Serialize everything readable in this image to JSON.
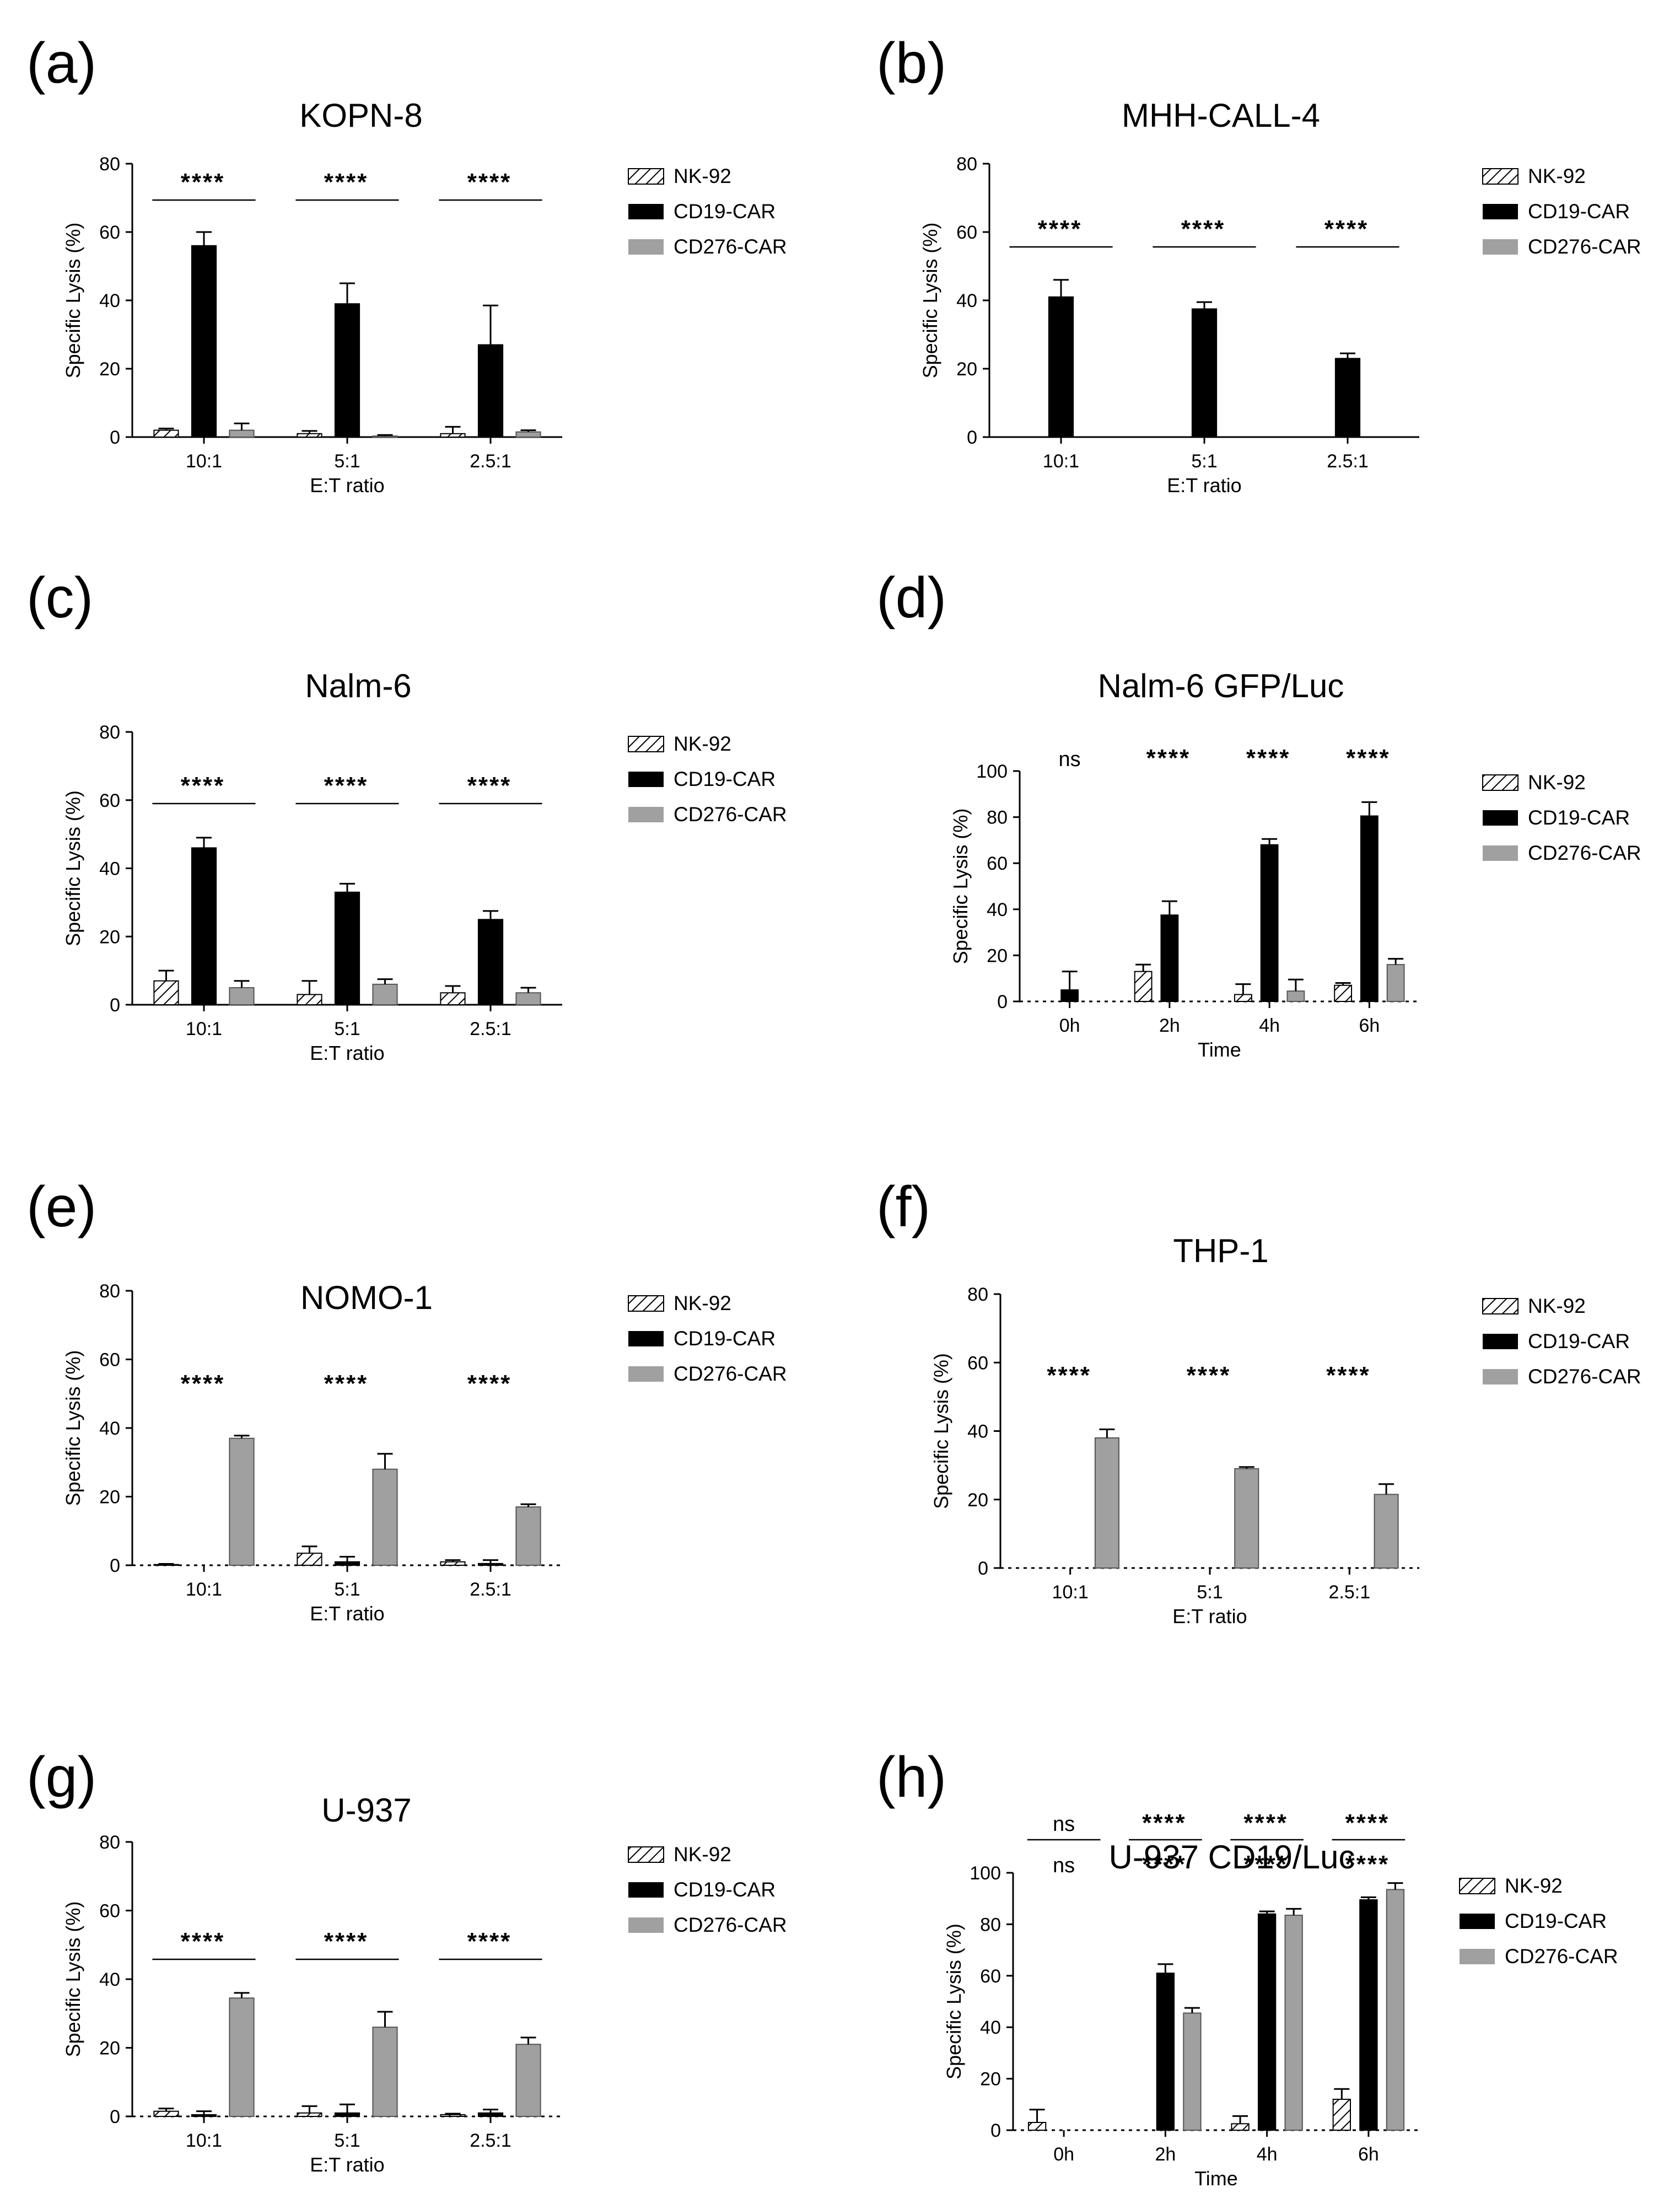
{
  "colors": {
    "nk92": "#ffffff",
    "cd19": "#000000",
    "cd276": "#a0a0a0",
    "axis": "#000000"
  },
  "legend": [
    "NK-92",
    "CD19-CAR",
    "CD276-CAR"
  ],
  "chart_data": [
    {
      "panel": "(a)",
      "type": "bar",
      "title": "KOPN-8",
      "ylabel": "Specific Lysis (%)",
      "xlabel": "E:T ratio",
      "categories": [
        "10:1",
        "5:1",
        "2.5:1"
      ],
      "ylim": [
        0,
        80
      ],
      "yticks": [
        0,
        20,
        40,
        60,
        80
      ],
      "ytick_style": "plain",
      "series": [
        {
          "name": "NK-92",
          "values": [
            2,
            1,
            1
          ],
          "errors": [
            0.5,
            0.8,
            2
          ]
        },
        {
          "name": "CD19-CAR",
          "values": [
            56,
            39,
            27
          ],
          "errors": [
            4,
            6,
            11.5
          ]
        },
        {
          "name": "CD276-CAR",
          "values": [
            2,
            0.3,
            1.5
          ],
          "errors": [
            2,
            0.3,
            0.5
          ]
        }
      ],
      "significance": [
        {
          "category": 0,
          "label": "****",
          "line": true
        },
        {
          "category": 1,
          "label": "****",
          "line": true
        },
        {
          "category": 2,
          "label": "****",
          "line": true
        }
      ]
    },
    {
      "panel": "(b)",
      "type": "bar",
      "title": "MHH-CALL-4",
      "ylabel": "Specific Lysis (%)",
      "xlabel": "E:T ratio",
      "categories": [
        "10:1",
        "5:1",
        "2.5:1"
      ],
      "ylim": [
        0,
        80
      ],
      "yticks": [
        0,
        20,
        40,
        60,
        80
      ],
      "ytick_style": "plain",
      "series": [
        {
          "name": "NK-92",
          "values": [
            0,
            0,
            0
          ],
          "errors": [
            0,
            0,
            0
          ]
        },
        {
          "name": "CD19-CAR",
          "values": [
            41,
            37.5,
            23
          ],
          "errors": [
            5,
            2,
            1.5
          ]
        },
        {
          "name": "CD276-CAR",
          "values": [
            0,
            0,
            0
          ],
          "errors": [
            0,
            0,
            0
          ]
        }
      ],
      "significance": [
        {
          "category": 0,
          "label": "****",
          "line": true
        },
        {
          "category": 1,
          "label": "****",
          "line": true
        },
        {
          "category": 2,
          "label": "****",
          "line": true
        }
      ]
    },
    {
      "panel": "(c)",
      "type": "bar",
      "title": "Nalm-6",
      "ylabel": "Specific Lysis (%)",
      "xlabel": "E:T ratio",
      "categories": [
        "10:1",
        "5:1",
        "2.5:1"
      ],
      "ylim": [
        0,
        80
      ],
      "yticks": [
        0,
        20,
        40,
        60,
        80
      ],
      "ytick_style": "dash",
      "series": [
        {
          "name": "NK-92",
          "values": [
            7,
            3,
            3.5
          ],
          "errors": [
            3,
            4,
            2
          ]
        },
        {
          "name": "CD19-CAR",
          "values": [
            46,
            33,
            25
          ],
          "errors": [
            3,
            2.5,
            2.5
          ]
        },
        {
          "name": "CD276-CAR",
          "values": [
            5,
            6,
            3.5
          ],
          "errors": [
            2,
            1.5,
            1.5
          ]
        }
      ],
      "significance": [
        {
          "category": 0,
          "label": "****",
          "line": true
        },
        {
          "category": 1,
          "label": "****",
          "line": true
        },
        {
          "category": 2,
          "label": "****",
          "line": true
        }
      ]
    },
    {
      "panel": "(d)",
      "type": "bar",
      "title": "Nalm-6 GFP/Luc",
      "ylabel": "Specific Lysis (%)",
      "xlabel": "Time",
      "categories": [
        "0h",
        "2h",
        "4h",
        "6h"
      ],
      "ylim": [
        0,
        100
      ],
      "yticks": [
        0,
        20,
        40,
        60,
        80,
        100
      ],
      "ytick_style": "dash",
      "series": [
        {
          "name": "NK-92",
          "values": [
            0,
            13,
            3,
            7
          ],
          "errors": [
            0,
            3,
            4.5,
            1
          ]
        },
        {
          "name": "CD19-CAR",
          "values": [
            5,
            37.5,
            68,
            80.5
          ],
          "errors": [
            8,
            6,
            2.5,
            6
          ]
        },
        {
          "name": "CD276-CAR",
          "values": [
            0,
            0,
            4.5,
            16
          ],
          "errors": [
            0,
            0,
            5,
            2.5
          ]
        }
      ],
      "significance": [
        {
          "category": 0,
          "label": "ns",
          "line": false
        },
        {
          "category": 1,
          "label": "****",
          "line": false
        },
        {
          "category": 2,
          "label": "****",
          "line": false
        },
        {
          "category": 3,
          "label": "****",
          "line": false
        }
      ]
    },
    {
      "panel": "(e)",
      "type": "bar",
      "title": "NOMO-1",
      "ylabel": "Specific Lysis (%)",
      "xlabel": "E:T ratio",
      "categories": [
        "10:1",
        "5:1",
        "2.5:1"
      ],
      "ylim": [
        0,
        80
      ],
      "yticks": [
        0,
        20,
        40,
        60,
        80
      ],
      "ytick_style": "plain",
      "series": [
        {
          "name": "NK-92",
          "values": [
            0.2,
            3.5,
            1
          ],
          "errors": [
            0.2,
            2,
            0.5
          ]
        },
        {
          "name": "CD19-CAR",
          "values": [
            0,
            1,
            0.5
          ],
          "errors": [
            0,
            1.5,
            1
          ]
        },
        {
          "name": "CD276-CAR",
          "values": [
            37,
            28,
            17
          ],
          "errors": [
            0.8,
            4.5,
            0.8
          ]
        }
      ],
      "significance": [
        {
          "category": 0,
          "label": "****",
          "line": false
        },
        {
          "category": 1,
          "label": "****",
          "line": false
        },
        {
          "category": 2,
          "label": "****",
          "line": false
        }
      ]
    },
    {
      "panel": "(f)",
      "type": "bar",
      "title": "THP-1",
      "ylabel": "Specific Lysis (%)",
      "xlabel": "E:T ratio",
      "categories": [
        "10:1",
        "5:1",
        "2.5:1"
      ],
      "ylim": [
        0,
        80
      ],
      "yticks": [
        0,
        20,
        40,
        60,
        80
      ],
      "ytick_style": "dash",
      "series": [
        {
          "name": "NK-92",
          "values": [
            0,
            0,
            0
          ],
          "errors": [
            0,
            0,
            0
          ]
        },
        {
          "name": "CD19-CAR",
          "values": [
            0,
            0,
            0
          ],
          "errors": [
            0,
            0,
            0
          ]
        },
        {
          "name": "CD276-CAR",
          "values": [
            38,
            29,
            21.5
          ],
          "errors": [
            2.5,
            0.5,
            3
          ]
        }
      ],
      "significance": [
        {
          "category": 0,
          "label": "****",
          "line": false
        },
        {
          "category": 1,
          "label": "****",
          "line": false
        },
        {
          "category": 2,
          "label": "****",
          "line": false
        }
      ]
    },
    {
      "panel": "(g)",
      "type": "bar",
      "title": "U-937",
      "ylabel": "Specific Lysis (%)",
      "xlabel": "E:T ratio",
      "categories": [
        "10:1",
        "5:1",
        "2.5:1"
      ],
      "ylim": [
        0,
        80
      ],
      "yticks": [
        0,
        20,
        40,
        60,
        80
      ],
      "ytick_style": "plain",
      "series": [
        {
          "name": "NK-92",
          "values": [
            1.5,
            1,
            0.5
          ],
          "errors": [
            0.8,
            2,
            0.3
          ]
        },
        {
          "name": "CD19-CAR",
          "values": [
            0.5,
            1,
            1
          ],
          "errors": [
            1,
            2.5,
            1
          ]
        },
        {
          "name": "CD276-CAR",
          "values": [
            34.5,
            26,
            21
          ],
          "errors": [
            1.5,
            4.5,
            2
          ]
        }
      ],
      "significance": [
        {
          "category": 0,
          "label": "****",
          "line": true
        },
        {
          "category": 1,
          "label": "****",
          "line": true
        },
        {
          "category": 2,
          "label": "****",
          "line": true
        }
      ]
    },
    {
      "panel": "(h)",
      "type": "bar",
      "title": "U-937 CD19/Luc",
      "ylabel": "Specific Lysis (%)",
      "xlabel": "Time",
      "categories": [
        "0h",
        "2h",
        "4h",
        "6h"
      ],
      "ylim": [
        0,
        100
      ],
      "yticks": [
        0,
        20,
        40,
        60,
        80,
        100
      ],
      "ytick_style": "dash",
      "series": [
        {
          "name": "NK-92",
          "values": [
            3,
            0,
            2.5,
            12
          ],
          "errors": [
            5,
            0,
            3,
            4
          ]
        },
        {
          "name": "CD19-CAR",
          "values": [
            0,
            61,
            84,
            89.5
          ],
          "errors": [
            0,
            3.5,
            1,
            1
          ]
        },
        {
          "name": "CD276-CAR",
          "values": [
            0,
            45.5,
            83.5,
            93.5
          ],
          "errors": [
            0,
            2,
            2.5,
            2.5
          ]
        }
      ],
      "significance": [
        {
          "category": 0,
          "label": "ns",
          "line": true,
          "row": 0
        },
        {
          "category": 0,
          "label": "ns",
          "line": false,
          "row": 1
        },
        {
          "category": 1,
          "label": "****",
          "line": true,
          "row": 0
        },
        {
          "category": 1,
          "label": "****",
          "line": false,
          "row": 1
        },
        {
          "category": 2,
          "label": "****",
          "line": true,
          "row": 0
        },
        {
          "category": 2,
          "label": "****",
          "line": false,
          "row": 1
        },
        {
          "category": 3,
          "label": "****",
          "line": true,
          "row": 0
        },
        {
          "category": 3,
          "label": "****",
          "line": false,
          "row": 1
        }
      ]
    }
  ]
}
